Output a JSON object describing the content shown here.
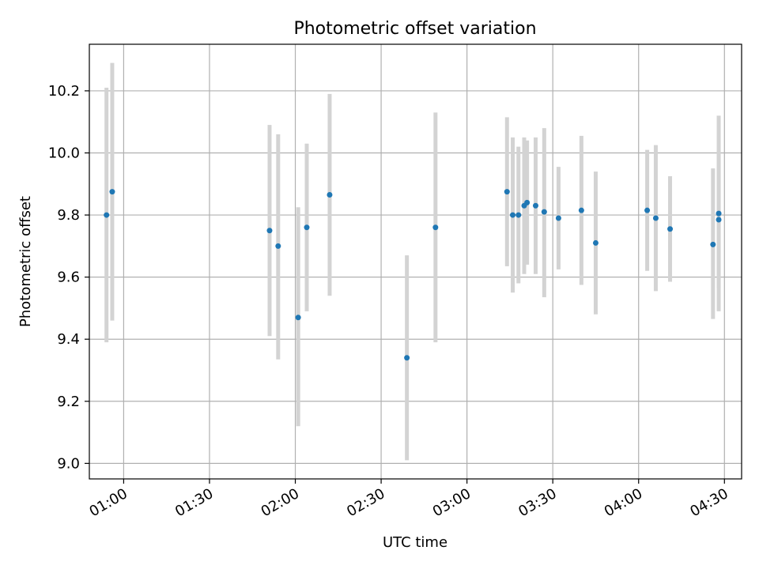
{
  "chart_data": {
    "type": "scatter",
    "title": "Photometric offset variation",
    "xlabel": "UTC time",
    "ylabel": "Photometric offset",
    "x_tick_labels": [
      "01:00",
      "01:30",
      "02:00",
      "02:30",
      "03:00",
      "03:30",
      "04:00",
      "04:30"
    ],
    "x_tick_times": [
      "01:00",
      "01:30",
      "02:00",
      "02:30",
      "03:00",
      "03:30",
      "04:00",
      "04:30"
    ],
    "y_tick_labels": [
      "9.0",
      "9.2",
      "9.4",
      "9.6",
      "9.8",
      "10.0",
      "10.2"
    ],
    "y_tick_values": [
      9.0,
      9.2,
      9.4,
      9.6,
      9.8,
      10.0,
      10.2
    ],
    "xlim": [
      "00:48",
      "04:36"
    ],
    "ylim": [
      8.95,
      10.35
    ],
    "grid": true,
    "colors": {
      "points": "#1f77b4",
      "errorbars": "#d3d3d3",
      "grid": "#b0b0b0"
    },
    "points": [
      {
        "x": "00:54",
        "y": 9.8,
        "ylow": 9.39,
        "yhigh": 10.21
      },
      {
        "x": "00:56",
        "y": 9.875,
        "ylow": 9.46,
        "yhigh": 10.29
      },
      {
        "x": "01:51",
        "y": 9.75,
        "ylow": 9.41,
        "yhigh": 10.09
      },
      {
        "x": "01:54",
        "y": 9.7,
        "ylow": 9.335,
        "yhigh": 10.06
      },
      {
        "x": "02:01",
        "y": 9.47,
        "ylow": 9.12,
        "yhigh": 9.825
      },
      {
        "x": "02:04",
        "y": 9.76,
        "ylow": 9.49,
        "yhigh": 10.03
      },
      {
        "x": "02:12",
        "y": 9.865,
        "ylow": 9.54,
        "yhigh": 10.19
      },
      {
        "x": "02:39",
        "y": 9.34,
        "ylow": 9.01,
        "yhigh": 9.67
      },
      {
        "x": "02:49",
        "y": 9.76,
        "ylow": 9.39,
        "yhigh": 10.13
      },
      {
        "x": "03:14",
        "y": 9.875,
        "ylow": 9.635,
        "yhigh": 10.115
      },
      {
        "x": "03:16",
        "y": 9.8,
        "ylow": 9.55,
        "yhigh": 10.05
      },
      {
        "x": "03:18",
        "y": 9.8,
        "ylow": 9.58,
        "yhigh": 10.02
      },
      {
        "x": "03:20",
        "y": 9.83,
        "ylow": 9.61,
        "yhigh": 10.05
      },
      {
        "x": "03:21",
        "y": 9.84,
        "ylow": 9.64,
        "yhigh": 10.04
      },
      {
        "x": "03:24",
        "y": 9.83,
        "ylow": 9.61,
        "yhigh": 10.05
      },
      {
        "x": "03:27",
        "y": 9.81,
        "ylow": 9.535,
        "yhigh": 10.08
      },
      {
        "x": "03:32",
        "y": 9.79,
        "ylow": 9.625,
        "yhigh": 9.955
      },
      {
        "x": "03:40",
        "y": 9.815,
        "ylow": 9.575,
        "yhigh": 10.055
      },
      {
        "x": "03:45",
        "y": 9.71,
        "ylow": 9.48,
        "yhigh": 9.94
      },
      {
        "x": "04:03",
        "y": 9.815,
        "ylow": 9.62,
        "yhigh": 10.01
      },
      {
        "x": "04:06",
        "y": 9.79,
        "ylow": 9.555,
        "yhigh": 10.025
      },
      {
        "x": "04:11",
        "y": 9.755,
        "ylow": 9.585,
        "yhigh": 9.925
      },
      {
        "x": "04:26",
        "y": 9.705,
        "ylow": 9.465,
        "yhigh": 9.95
      },
      {
        "x": "04:28",
        "y": 9.805,
        "ylow": 9.49,
        "yhigh": 10.12
      },
      {
        "x": "04:28",
        "y": 9.785,
        "ylow": 9.565,
        "yhigh": 10.005
      }
    ]
  }
}
